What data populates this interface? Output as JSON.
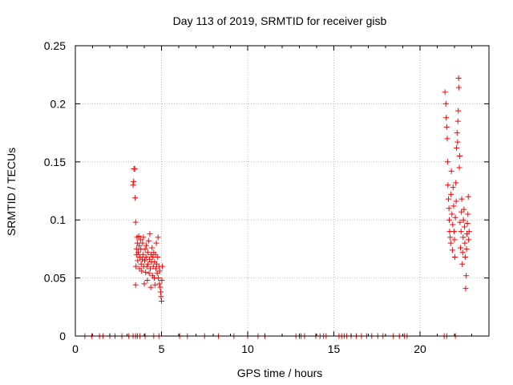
{
  "chart_data": {
    "type": "scatter",
    "title": "Day 113 of 2019, SRMTID for receiver gisb",
    "xlabel": "GPS time / hours",
    "ylabel": "SRMTID / TECUs",
    "xlim": [
      0,
      24
    ],
    "ylim": [
      0,
      0.25
    ],
    "xticks": [
      0,
      5,
      10,
      15,
      20
    ],
    "yticks": [
      0,
      0.05,
      0.1,
      0.15,
      0.2,
      0.25
    ],
    "ytick_labels": [
      "0",
      "0.05",
      "0.1",
      "0.15",
      "0.2",
      "0.25"
    ],
    "grid": true,
    "legend": "none",
    "marker": "+",
    "marker_color": "#ff0000",
    "series": [
      {
        "points": [
          [
            0.55,
            0
          ],
          [
            0.95,
            0
          ],
          [
            1.4,
            0
          ],
          [
            1.6,
            0
          ],
          [
            2.0,
            0
          ],
          [
            2.3,
            0
          ],
          [
            2.7,
            0
          ],
          [
            3.1,
            0
          ],
          [
            3.35,
            0
          ],
          [
            3.5,
            0
          ],
          [
            3.6,
            0
          ],
          [
            3.75,
            0
          ],
          [
            4.05,
            0
          ],
          [
            4.55,
            0
          ],
          [
            4.85,
            0
          ],
          [
            6.05,
            0
          ],
          [
            6.5,
            0
          ],
          [
            7.5,
            0
          ],
          [
            8.3,
            0
          ],
          [
            9.2,
            0
          ],
          [
            10.0,
            0
          ],
          [
            10.6,
            0
          ],
          [
            11.0,
            0
          ],
          [
            12.8,
            0
          ],
          [
            13.0,
            0
          ],
          [
            13.1,
            0
          ],
          [
            13.3,
            0
          ],
          [
            13.95,
            0
          ],
          [
            14.2,
            0
          ],
          [
            14.4,
            0
          ],
          [
            14.55,
            0
          ],
          [
            15.3,
            0
          ],
          [
            15.45,
            0
          ],
          [
            15.6,
            0
          ],
          [
            15.75,
            0
          ],
          [
            16.0,
            0
          ],
          [
            16.3,
            0
          ],
          [
            16.6,
            0
          ],
          [
            16.9,
            0
          ],
          [
            17.2,
            0
          ],
          [
            17.55,
            0
          ],
          [
            17.85,
            0
          ],
          [
            18.45,
            0
          ],
          [
            18.8,
            0
          ],
          [
            19.1,
            0
          ],
          [
            19.25,
            0
          ],
          [
            21.4,
            0
          ],
          [
            21.55,
            0
          ],
          [
            22.05,
            0
          ],
          [
            3.35,
            0.13
          ],
          [
            3.38,
            0.133
          ],
          [
            3.4,
            0.144
          ],
          [
            3.45,
            0.144
          ],
          [
            3.47,
            0.119
          ],
          [
            3.5,
            0.098
          ],
          [
            3.5,
            0.044
          ],
          [
            3.52,
            0.06
          ],
          [
            3.55,
            0.07
          ],
          [
            3.55,
            0.075
          ],
          [
            3.58,
            0.085
          ],
          [
            3.6,
            0.08
          ],
          [
            3.62,
            0.065
          ],
          [
            3.65,
            0.072
          ],
          [
            3.68,
            0.086
          ],
          [
            3.7,
            0.078
          ],
          [
            3.72,
            0.058
          ],
          [
            3.75,
            0.068
          ],
          [
            3.78,
            0.083
          ],
          [
            3.8,
            0.075
          ],
          [
            3.82,
            0.062
          ],
          [
            3.85,
            0.056
          ],
          [
            3.88,
            0.066
          ],
          [
            3.9,
            0.08
          ],
          [
            3.92,
            0.07
          ],
          [
            3.95,
            0.085
          ],
          [
            3.97,
            0.06
          ],
          [
            4.0,
            0.045
          ],
          [
            4.02,
            0.065
          ],
          [
            4.05,
            0.075
          ],
          [
            4.08,
            0.055
          ],
          [
            4.1,
            0.068
          ],
          [
            4.12,
            0.078
          ],
          [
            4.15,
            0.06
          ],
          [
            4.18,
            0.048
          ],
          [
            4.2,
            0.072
          ],
          [
            4.22,
            0.062
          ],
          [
            4.25,
            0.082
          ],
          [
            4.28,
            0.054
          ],
          [
            4.3,
            0.066
          ],
          [
            4.32,
            0.088
          ],
          [
            4.35,
            0.058
          ],
          [
            4.38,
            0.042
          ],
          [
            4.4,
            0.07
          ],
          [
            4.42,
            0.064
          ],
          [
            4.45,
            0.076
          ],
          [
            4.48,
            0.052
          ],
          [
            4.5,
            0.068
          ],
          [
            4.52,
            0.06
          ],
          [
            4.55,
            0.072
          ],
          [
            4.58,
            0.05
          ],
          [
            4.6,
            0.064
          ],
          [
            4.62,
            0.044
          ],
          [
            4.65,
            0.07
          ],
          [
            4.68,
            0.058
          ],
          [
            4.7,
            0.08
          ],
          [
            4.72,
            0.062
          ],
          [
            4.75,
            0.054
          ],
          [
            4.78,
            0.068
          ],
          [
            4.8,
            0.085
          ],
          [
            4.82,
            0.05
          ],
          [
            4.85,
            0.06
          ],
          [
            4.88,
            0.045
          ],
          [
            4.9,
            0.056
          ],
          [
            4.92,
            0.042
          ],
          [
            4.95,
            0.038
          ],
          [
            4.97,
            0.034
          ],
          [
            5.0,
            0.03
          ],
          [
            5.02,
            0.048
          ],
          [
            5.05,
            0.06
          ],
          [
            21.45,
            0.21
          ],
          [
            21.5,
            0.2
          ],
          [
            21.52,
            0.188
          ],
          [
            21.55,
            0.18
          ],
          [
            21.58,
            0.17
          ],
          [
            21.6,
            0.15
          ],
          [
            21.62,
            0.13
          ],
          [
            21.65,
            0.118
          ],
          [
            21.68,
            0.11
          ],
          [
            21.7,
            0.1
          ],
          [
            21.72,
            0.09
          ],
          [
            21.75,
            0.085
          ],
          [
            21.78,
            0.08
          ],
          [
            21.8,
            0.122
          ],
          [
            21.82,
            0.142
          ],
          [
            21.85,
            0.105
          ],
          [
            21.88,
            0.074
          ],
          [
            21.9,
            0.096
          ],
          [
            21.92,
            0.128
          ],
          [
            21.95,
            0.112
          ],
          [
            21.98,
            0.09
          ],
          [
            22.0,
            0.083
          ],
          [
            22.02,
            0.068
          ],
          [
            22.05,
            0.102
          ],
          [
            22.08,
            0.132
          ],
          [
            22.1,
            0.116
          ],
          [
            22.12,
            0.162
          ],
          [
            22.15,
            0.175
          ],
          [
            22.18,
            0.167
          ],
          [
            22.2,
            0.185
          ],
          [
            22.22,
            0.194
          ],
          [
            22.24,
            0.222
          ],
          [
            22.25,
            0.214
          ],
          [
            22.28,
            0.145
          ],
          [
            22.3,
            0.155
          ],
          [
            22.32,
            0.098
          ],
          [
            22.35,
            0.076
          ],
          [
            22.38,
            0.09
          ],
          [
            22.4,
            0.107
          ],
          [
            22.42,
            0.118
          ],
          [
            22.45,
            0.062
          ],
          [
            22.48,
            0.072
          ],
          [
            22.5,
            0.085
          ],
          [
            22.52,
            0.1
          ],
          [
            22.55,
            0.109
          ],
          [
            22.58,
            0.094
          ],
          [
            22.6,
            0.08
          ],
          [
            22.62,
            0.068
          ],
          [
            22.65,
            0.041
          ],
          [
            22.68,
            0.052
          ],
          [
            22.7,
            0.075
          ],
          [
            22.72,
            0.088
          ],
          [
            22.75,
            0.097
          ],
          [
            22.78,
            0.105
          ],
          [
            22.8,
            0.12
          ],
          [
            22.82,
            0.083
          ],
          [
            22.85,
            0.09
          ]
        ]
      }
    ]
  }
}
